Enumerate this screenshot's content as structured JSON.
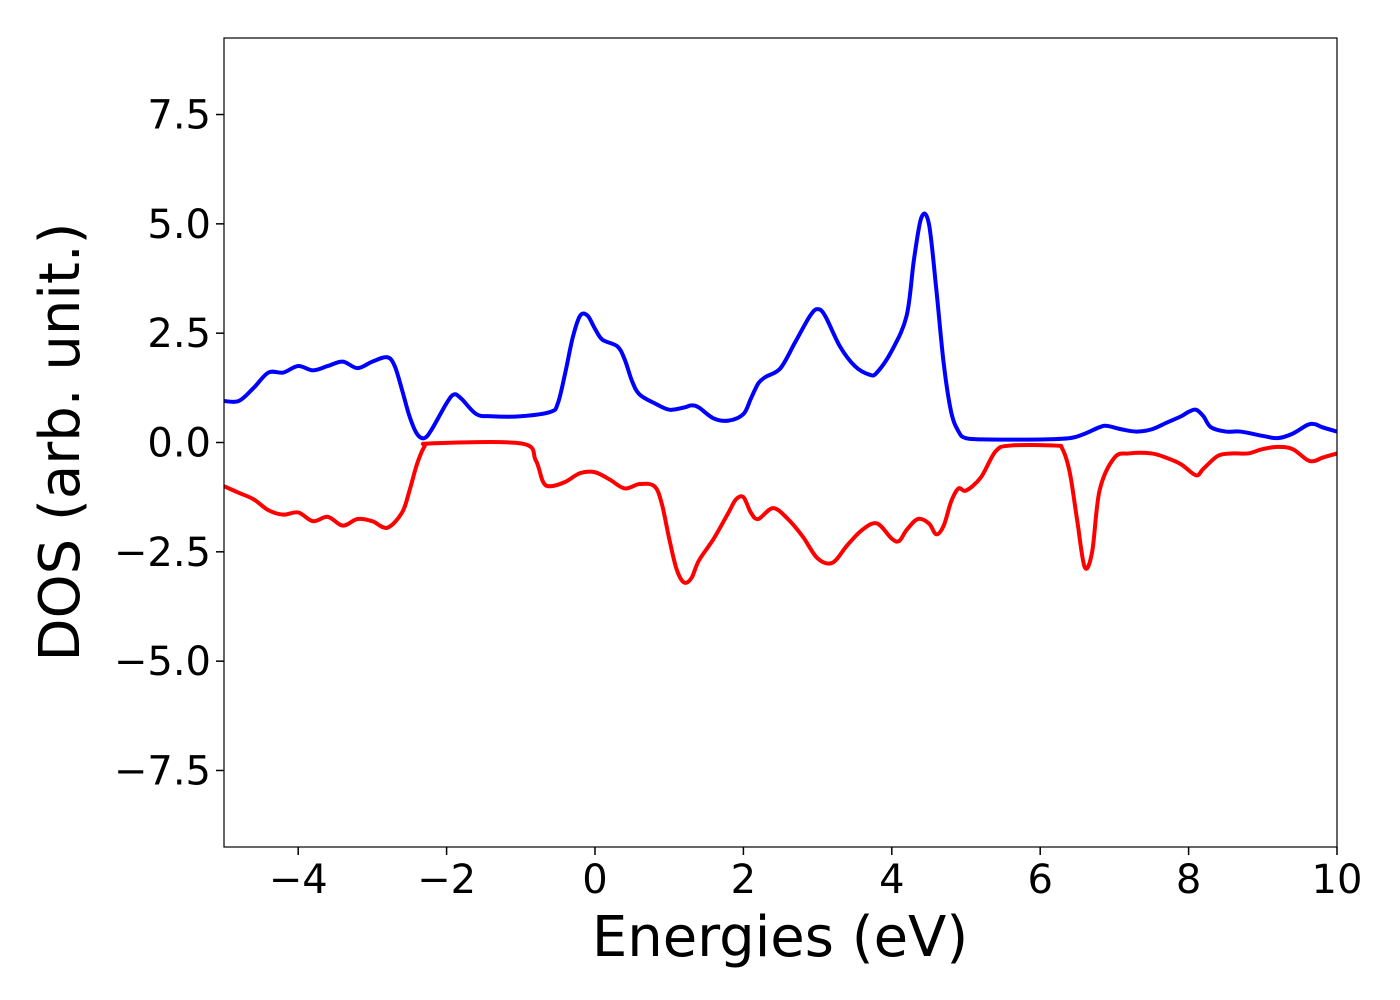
{
  "chart_data": {
    "type": "line",
    "title": "",
    "xlabel": "Energies (eV)",
    "ylabel": "DOS (arb. unit.)",
    "xlim": [
      -5,
      10
    ],
    "ylim": [
      -9.25,
      9.25
    ],
    "grid": false,
    "legend": "none",
    "x_ticks": [
      -4,
      -2,
      0,
      2,
      4,
      6,
      8,
      10
    ],
    "x_tick_labels": [
      "−4",
      "−2",
      "0",
      "2",
      "4",
      "6",
      "8",
      "10"
    ],
    "y_ticks": [
      7.5,
      5.0,
      2.5,
      0.0,
      -2.5,
      -5.0,
      -7.5
    ],
    "y_tick_labels": [
      "7.5",
      "5.0",
      "2.5",
      "0.0",
      "−2.5",
      "−5.0",
      "−7.5"
    ],
    "series": [
      {
        "color": "#0000ff",
        "points": [
          [
            -5.0,
            0.95
          ],
          [
            -4.8,
            0.95
          ],
          [
            -4.6,
            1.25
          ],
          [
            -4.4,
            1.6
          ],
          [
            -4.2,
            1.6
          ],
          [
            -4.0,
            1.75
          ],
          [
            -3.8,
            1.65
          ],
          [
            -3.6,
            1.75
          ],
          [
            -3.4,
            1.85
          ],
          [
            -3.2,
            1.7
          ],
          [
            -3.0,
            1.85
          ],
          [
            -2.8,
            1.95
          ],
          [
            -2.7,
            1.75
          ],
          [
            -2.6,
            1.2
          ],
          [
            -2.5,
            0.6
          ],
          [
            -2.4,
            0.2
          ],
          [
            -2.3,
            0.1
          ],
          [
            -2.2,
            0.3
          ],
          [
            -2.0,
            0.9
          ],
          [
            -1.9,
            1.1
          ],
          [
            -1.8,
            1.0
          ],
          [
            -1.6,
            0.65
          ],
          [
            -1.4,
            0.6
          ],
          [
            -1.0,
            0.6
          ],
          [
            -0.6,
            0.7
          ],
          [
            -0.5,
            0.9
          ],
          [
            -0.4,
            1.6
          ],
          [
            -0.3,
            2.4
          ],
          [
            -0.2,
            2.9
          ],
          [
            -0.1,
            2.9
          ],
          [
            0.0,
            2.6
          ],
          [
            0.1,
            2.35
          ],
          [
            0.3,
            2.2
          ],
          [
            0.4,
            1.9
          ],
          [
            0.5,
            1.4
          ],
          [
            0.6,
            1.1
          ],
          [
            0.8,
            0.9
          ],
          [
            1.0,
            0.75
          ],
          [
            1.2,
            0.8
          ],
          [
            1.3,
            0.85
          ],
          [
            1.4,
            0.8
          ],
          [
            1.6,
            0.55
          ],
          [
            1.8,
            0.5
          ],
          [
            2.0,
            0.65
          ],
          [
            2.1,
            1.0
          ],
          [
            2.2,
            1.35
          ],
          [
            2.3,
            1.5
          ],
          [
            2.5,
            1.7
          ],
          [
            2.7,
            2.3
          ],
          [
            2.9,
            2.9
          ],
          [
            3.0,
            3.05
          ],
          [
            3.1,
            2.9
          ],
          [
            3.3,
            2.2
          ],
          [
            3.5,
            1.75
          ],
          [
            3.7,
            1.55
          ],
          [
            3.8,
            1.6
          ],
          [
            4.0,
            2.1
          ],
          [
            4.2,
            2.9
          ],
          [
            4.3,
            4.2
          ],
          [
            4.4,
            5.15
          ],
          [
            4.5,
            5.0
          ],
          [
            4.6,
            3.5
          ],
          [
            4.7,
            1.8
          ],
          [
            4.8,
            0.7
          ],
          [
            4.9,
            0.25
          ],
          [
            5.0,
            0.1
          ],
          [
            5.3,
            0.07
          ],
          [
            6.0,
            0.07
          ],
          [
            6.4,
            0.1
          ],
          [
            6.6,
            0.2
          ],
          [
            6.8,
            0.35
          ],
          [
            6.9,
            0.38
          ],
          [
            7.1,
            0.3
          ],
          [
            7.3,
            0.25
          ],
          [
            7.5,
            0.3
          ],
          [
            7.7,
            0.45
          ],
          [
            7.9,
            0.6
          ],
          [
            8.0,
            0.7
          ],
          [
            8.1,
            0.75
          ],
          [
            8.2,
            0.6
          ],
          [
            8.3,
            0.35
          ],
          [
            8.5,
            0.25
          ],
          [
            8.7,
            0.25
          ],
          [
            9.0,
            0.15
          ],
          [
            9.2,
            0.1
          ],
          [
            9.4,
            0.2
          ],
          [
            9.6,
            0.4
          ],
          [
            9.7,
            0.42
          ],
          [
            9.8,
            0.35
          ],
          [
            10.0,
            0.25
          ]
        ]
      },
      {
        "color": "#ff0000",
        "points": [
          [
            -5.0,
            -1.0
          ],
          [
            -4.8,
            -1.15
          ],
          [
            -4.6,
            -1.3
          ],
          [
            -4.4,
            -1.55
          ],
          [
            -4.2,
            -1.65
          ],
          [
            -4.0,
            -1.6
          ],
          [
            -3.8,
            -1.8
          ],
          [
            -3.6,
            -1.7
          ],
          [
            -3.4,
            -1.9
          ],
          [
            -3.2,
            -1.75
          ],
          [
            -3.0,
            -1.8
          ],
          [
            -2.8,
            -1.95
          ],
          [
            -2.6,
            -1.6
          ],
          [
            -2.5,
            -1.1
          ],
          [
            -2.4,
            -0.5
          ],
          [
            -2.3,
            -0.1
          ],
          [
            -2.2,
            -0.02
          ],
          [
            -1.0,
            -0.02
          ],
          [
            -0.8,
            -0.4
          ],
          [
            -0.7,
            -0.9
          ],
          [
            -0.6,
            -1.0
          ],
          [
            -0.4,
            -0.9
          ],
          [
            -0.2,
            -0.7
          ],
          [
            0.0,
            -0.68
          ],
          [
            0.2,
            -0.85
          ],
          [
            0.4,
            -1.05
          ],
          [
            0.6,
            -0.95
          ],
          [
            0.8,
            -1.0
          ],
          [
            0.9,
            -1.4
          ],
          [
            1.0,
            -2.2
          ],
          [
            1.1,
            -2.9
          ],
          [
            1.2,
            -3.2
          ],
          [
            1.3,
            -3.1
          ],
          [
            1.4,
            -2.7
          ],
          [
            1.6,
            -2.2
          ],
          [
            1.8,
            -1.6
          ],
          [
            1.9,
            -1.3
          ],
          [
            2.0,
            -1.25
          ],
          [
            2.1,
            -1.6
          ],
          [
            2.2,
            -1.75
          ],
          [
            2.4,
            -1.5
          ],
          [
            2.6,
            -1.75
          ],
          [
            2.8,
            -2.15
          ],
          [
            3.0,
            -2.65
          ],
          [
            3.2,
            -2.75
          ],
          [
            3.4,
            -2.35
          ],
          [
            3.6,
            -2.0
          ],
          [
            3.8,
            -1.85
          ],
          [
            4.0,
            -2.2
          ],
          [
            4.1,
            -2.25
          ],
          [
            4.2,
            -2.0
          ],
          [
            4.35,
            -1.75
          ],
          [
            4.5,
            -1.85
          ],
          [
            4.6,
            -2.1
          ],
          [
            4.7,
            -1.9
          ],
          [
            4.8,
            -1.35
          ],
          [
            4.9,
            -1.05
          ],
          [
            5.0,
            -1.1
          ],
          [
            5.2,
            -0.8
          ],
          [
            5.4,
            -0.2
          ],
          [
            5.6,
            -0.07
          ],
          [
            6.2,
            -0.07
          ],
          [
            6.3,
            -0.15
          ],
          [
            6.4,
            -0.7
          ],
          [
            6.5,
            -1.8
          ],
          [
            6.6,
            -2.85
          ],
          [
            6.7,
            -2.5
          ],
          [
            6.8,
            -1.1
          ],
          [
            7.0,
            -0.35
          ],
          [
            7.2,
            -0.25
          ],
          [
            7.5,
            -0.25
          ],
          [
            7.7,
            -0.35
          ],
          [
            7.9,
            -0.5
          ],
          [
            8.1,
            -0.75
          ],
          [
            8.2,
            -0.6
          ],
          [
            8.4,
            -0.3
          ],
          [
            8.6,
            -0.25
          ],
          [
            8.8,
            -0.25
          ],
          [
            9.0,
            -0.15
          ],
          [
            9.2,
            -0.1
          ],
          [
            9.4,
            -0.15
          ],
          [
            9.6,
            -0.4
          ],
          [
            9.7,
            -0.42
          ],
          [
            9.8,
            -0.35
          ],
          [
            10.0,
            -0.25
          ]
        ]
      }
    ]
  }
}
